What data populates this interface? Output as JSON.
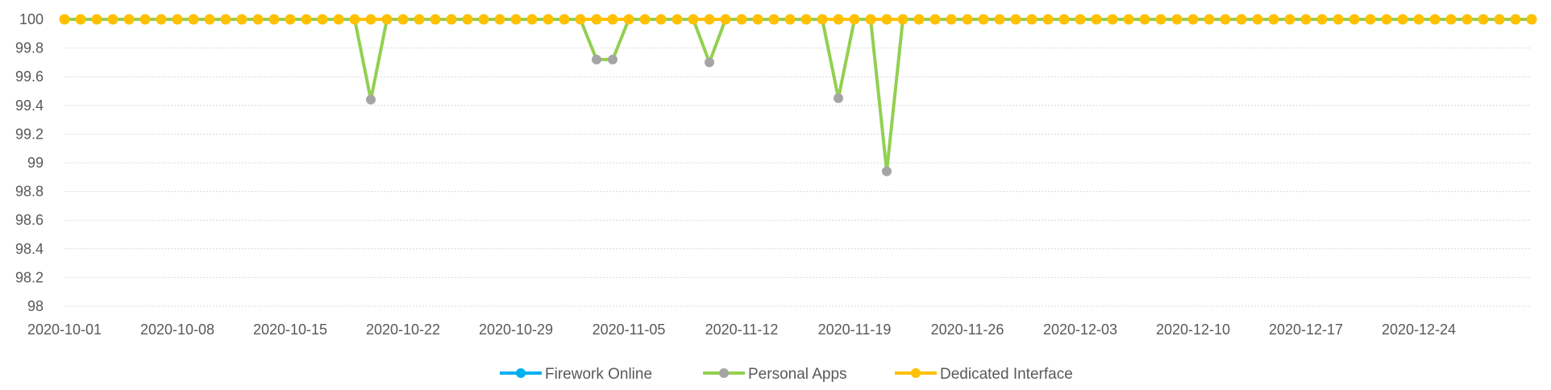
{
  "chart_data": {
    "type": "line",
    "x_start": "2020-10-01",
    "x_end": "2020-12-31",
    "ylim": [
      98,
      100
    ],
    "yticks": [
      "100",
      "99.8",
      "99.6",
      "99.4",
      "99.2",
      "99",
      "98.8",
      "98.6",
      "98.4",
      "98.2",
      "98"
    ],
    "xticks": [
      "2020-10-01",
      "2020-10-08",
      "2020-10-15",
      "2020-10-22",
      "2020-10-29",
      "2020-11-05",
      "2020-11-12",
      "2020-11-19",
      "2020-11-26",
      "2020-12-03",
      "2020-12-10",
      "2020-12-17",
      "2020-12-24"
    ],
    "grid": true,
    "legend_position": "bottom",
    "baseline_value": 100,
    "series": [
      {
        "name": "Firework Online",
        "color": "#00b0f0",
        "marker_color": "#00b0f0",
        "dips": []
      },
      {
        "name": "Personal Apps",
        "color": "#92d050",
        "marker_color": "#a5a5a5",
        "dips": [
          {
            "date": "2020-10-20",
            "value": 99.44
          },
          {
            "date": "2020-11-03",
            "value": 99.72
          },
          {
            "date": "2020-11-04",
            "value": 99.72
          },
          {
            "date": "2020-11-10",
            "value": 99.7
          },
          {
            "date": "2020-11-18",
            "value": 99.45
          },
          {
            "date": "2020-11-21",
            "value": 98.94
          }
        ]
      },
      {
        "name": "Dedicated Interface",
        "color": "#ffc000",
        "marker_color": "#ffc000",
        "dips": []
      }
    ]
  }
}
